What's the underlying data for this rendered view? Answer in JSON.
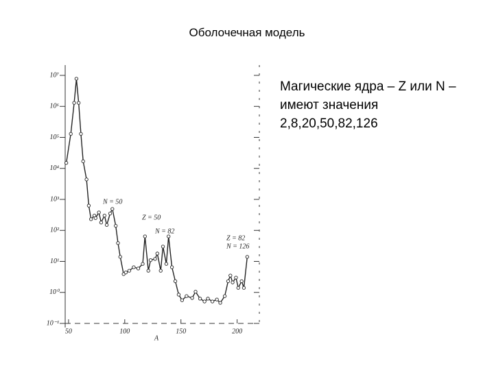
{
  "title": "Оболочечная модель",
  "note": "Магические ядра – Z или N – имеют значения 2,8,20,50,82,126",
  "chart_data": {
    "type": "line",
    "x_label": "A",
    "x": [
      48,
      52,
      55,
      57,
      59,
      61,
      63,
      66,
      68,
      70,
      73,
      74,
      77,
      79,
      82,
      84,
      87,
      89,
      92,
      94,
      96,
      99,
      101,
      104,
      108,
      112,
      116,
      118,
      121,
      123,
      127,
      129,
      132,
      134,
      137,
      139,
      142,
      145,
      148,
      151,
      155,
      160,
      163,
      167,
      171,
      174,
      178,
      182,
      185,
      189,
      192,
      194,
      196,
      199,
      201,
      204,
      206,
      209
    ],
    "series": [
      {
        "name": "A",
        "color": "#222",
        "values": [
          15000,
          130000,
          1300000,
          7800000,
          1300000,
          130000,
          17000,
          4400,
          630,
          230,
          300,
          250,
          380,
          180,
          300,
          150,
          350,
          490,
          140,
          39,
          14,
          3.9,
          4.4,
          5,
          6.5,
          5.9,
          8.3,
          64,
          5,
          11,
          12,
          18,
          5,
          30,
          8.3,
          64,
          6.5,
          2.3,
          0.85,
          0.56,
          0.76,
          0.66,
          1.05,
          0.63,
          0.51,
          0.63,
          0.51,
          0.59,
          0.46,
          0.76,
          2.3,
          3.5,
          2.1,
          3,
          1.4,
          2.3,
          1.4,
          14
        ]
      }
    ],
    "xlim": [
      47,
      221
    ],
    "xticks": [
      50,
      100,
      150,
      200
    ],
    "ylim": [
      0.1,
      10000000
    ],
    "log_y": true,
    "yticks": [
      {
        "value": 10000000,
        "label": "10⁷"
      },
      {
        "value": 1000000,
        "label": "10⁶"
      },
      {
        "value": 100000,
        "label": "10⁵"
      },
      {
        "value": 10000,
        "label": "10⁴"
      },
      {
        "value": 1000,
        "label": "10³"
      },
      {
        "value": 100,
        "label": "10²"
      },
      {
        "value": 10,
        "label": "10¹"
      },
      {
        "value": 1,
        "label": "10⁰"
      },
      {
        "value": 0.1,
        "label": "10⁻¹"
      }
    ],
    "annotations": [
      "N = 50",
      "Z = 50",
      "N = 82",
      "Z = 82",
      "N = 126"
    ]
  }
}
